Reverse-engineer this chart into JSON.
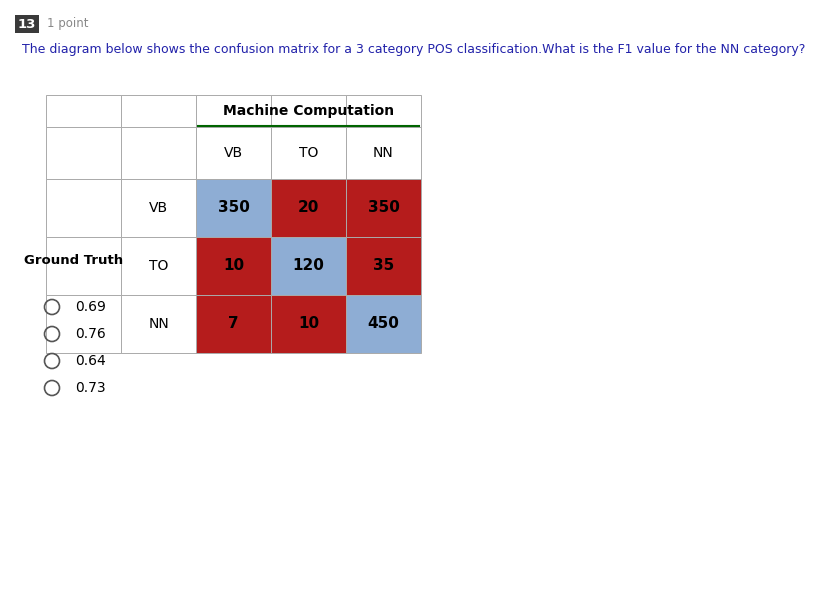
{
  "title_number": "13",
  "title_points": "1 point",
  "question_text": "The diagram below shows the confusion matrix for a 3 category POS classification.What is the F1 value for the NN category?",
  "machine_label": "Machine Computation",
  "ground_truth_label": "Ground Truth",
  "col_labels": [
    "VB",
    "TO",
    "NN"
  ],
  "row_labels": [
    "VB",
    "TO",
    "NN"
  ],
  "matrix": [
    [
      350,
      20,
      350
    ],
    [
      10,
      120,
      35
    ],
    [
      7,
      10,
      450
    ]
  ],
  "diagonal_color": "#8eadd4",
  "off_diagonal_color": "#b51c1c",
  "text_color": "#000000",
  "answer_options": [
    "0.69",
    "0.76",
    "0.64",
    "0.73"
  ],
  "bg_color": "#ffffff",
  "grid_line_color": "#aaaaaa",
  "number_bg": "#3a3a3a",
  "number_color": "#ffffff",
  "question_color": "#2222aa",
  "mc_underline_color": "#006400",
  "points_color": "#888888"
}
